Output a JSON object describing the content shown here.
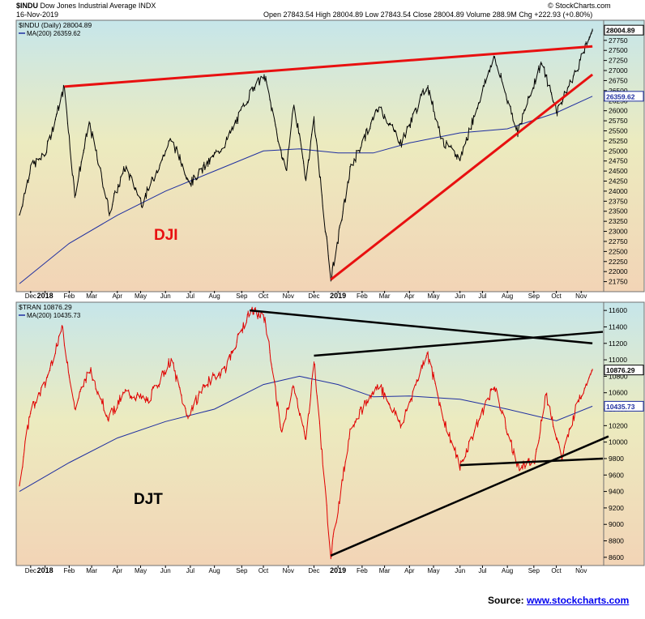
{
  "header": {
    "symbol": "$INDU",
    "name": "Dow Jones Industrial Average INDX",
    "date": "16-Nov-2019",
    "quote": "Open 27843.54  High 28004.89  Low 27843.54  Close 28004.89  Volume 288.9M  Chg +222.93 (+0.80%)",
    "brand": "© StockCharts.com"
  },
  "source": {
    "label": "Source:",
    "link": "www.stockcharts.com"
  },
  "colors": {
    "price_dji": "#000000",
    "price_djt": "#e00000",
    "ma": "#1f2fa0",
    "trend_dji": "#e81010",
    "trend_djt": "#000000",
    "bg_top": "#c6e6ea",
    "bg_mid": "#ecebbf",
    "bg_bottom": "#f2d4b6"
  },
  "chart_data": [
    {
      "type": "line",
      "panel": "upper",
      "legend_price": "$INDU (Daily) 28004.89",
      "legend_ma": "MA(200) 26359.62",
      "annotation": "DJI",
      "ylim": [
        21500,
        28250
      ],
      "y_ticks": [
        21750,
        22000,
        22250,
        22500,
        22750,
        23000,
        23250,
        23500,
        23750,
        24000,
        24250,
        24500,
        24750,
        25000,
        25250,
        25500,
        25750,
        26000,
        26250,
        26500,
        26750,
        27000,
        27250,
        27500,
        27750
      ],
      "last_price_label": "28004.89",
      "last_ma_label": "26359.62",
      "series": [
        {
          "key": "price",
          "x": [
            "2017-12-01",
            "2017-12-15",
            "2018-01-02",
            "2018-01-26",
            "2018-02-08",
            "2018-02-26",
            "2018-03-23",
            "2018-04-12",
            "2018-05-03",
            "2018-06-08",
            "2018-07-02",
            "2018-08-15",
            "2018-09-20",
            "2018-10-03",
            "2018-10-29",
            "2018-11-08",
            "2018-11-23",
            "2018-12-03",
            "2018-12-24",
            "2019-01-18",
            "2019-02-22",
            "2019-03-22",
            "2019-04-23",
            "2019-05-13",
            "2019-06-03",
            "2019-07-15",
            "2019-08-14",
            "2019-09-12",
            "2019-10-02",
            "2019-10-28",
            "2019-11-15"
          ],
          "y": [
            23400,
            24600,
            24900,
            26600,
            23900,
            25700,
            23500,
            24600,
            23700,
            25300,
            24200,
            25200,
            26650,
            26830,
            24440,
            26200,
            24300,
            25800,
            21790,
            24600,
            26100,
            25200,
            26650,
            25200,
            24800,
            27350,
            25480,
            27200,
            26000,
            27100,
            28004.89
          ]
        },
        {
          "key": "ma200",
          "x": [
            "2017-12-01",
            "2018-02-01",
            "2018-04-02",
            "2018-06-01",
            "2018-08-01",
            "2018-10-01",
            "2018-11-15",
            "2019-01-02",
            "2019-02-15",
            "2019-04-01",
            "2019-06-03",
            "2019-08-01",
            "2019-10-01",
            "2019-11-15"
          ],
          "y": [
            21700,
            22700,
            23400,
            24000,
            24500,
            25000,
            25050,
            24950,
            24950,
            25200,
            25450,
            25550,
            25950,
            26359.62
          ]
        }
      ],
      "trendlines": [
        {
          "name": "resistance",
          "x": [
            "2018-01-26",
            "2019-11-15"
          ],
          "y": [
            26600,
            27600
          ]
        },
        {
          "name": "support",
          "x": [
            "2018-12-24",
            "2019-11-15"
          ],
          "y": [
            21800,
            26900
          ]
        }
      ]
    },
    {
      "type": "line",
      "panel": "lower",
      "legend_price": "$TRAN 10876.29",
      "legend_ma": "MA(200) 10435.73",
      "annotation": "DJT",
      "ylim": [
        8500,
        11700
      ],
      "y_ticks": [
        8600,
        8800,
        9000,
        9200,
        9400,
        9600,
        9800,
        10000,
        10200,
        10400,
        10600,
        10800,
        11000,
        11200,
        11400,
        11600
      ],
      "last_price_label": "10876.29",
      "last_ma_label": "10435.73",
      "series": [
        {
          "key": "price",
          "x": [
            "2017-12-01",
            "2017-12-15",
            "2018-01-02",
            "2018-01-23",
            "2018-02-08",
            "2018-02-26",
            "2018-03-22",
            "2018-04-12",
            "2018-05-10",
            "2018-06-08",
            "2018-06-28",
            "2018-07-20",
            "2018-08-15",
            "2018-09-14",
            "2018-10-03",
            "2018-10-24",
            "2018-11-08",
            "2018-11-23",
            "2018-12-03",
            "2018-12-24",
            "2019-01-18",
            "2019-02-22",
            "2019-03-22",
            "2019-04-23",
            "2019-05-13",
            "2019-06-03",
            "2019-07-15",
            "2019-08-14",
            "2019-09-04",
            "2019-09-18",
            "2019-10-08",
            "2019-10-28",
            "2019-11-15"
          ],
          "y": [
            9500,
            10400,
            10700,
            11400,
            10400,
            10900,
            10300,
            10600,
            10500,
            11000,
            10300,
            10700,
            10900,
            11600,
            11500,
            10100,
            10700,
            10000,
            11000,
            8620,
            10200,
            10700,
            10200,
            11100,
            10300,
            9700,
            10700,
            9700,
            9750,
            10600,
            9800,
            10500,
            10876.29
          ]
        },
        {
          "key": "ma200",
          "x": [
            "2017-12-01",
            "2018-02-01",
            "2018-04-02",
            "2018-06-01",
            "2018-08-01",
            "2018-10-01",
            "2018-11-15",
            "2019-01-02",
            "2019-02-15",
            "2019-04-01",
            "2019-06-03",
            "2019-08-01",
            "2019-10-01",
            "2019-11-15"
          ],
          "y": [
            9400,
            9750,
            10050,
            10250,
            10400,
            10700,
            10800,
            10700,
            10550,
            10560,
            10520,
            10400,
            10260,
            10435.73
          ]
        }
      ],
      "trendlines": [
        {
          "name": "upper-falling",
          "x": [
            "2018-09-14",
            "2019-11-15"
          ],
          "y": [
            11600,
            11200
          ]
        },
        {
          "name": "upper-rising",
          "x": [
            "2018-12-03",
            "2019-11-28"
          ],
          "y": [
            11050,
            11340
          ]
        },
        {
          "name": "lower-flat",
          "x": [
            "2019-06-03",
            "2019-11-28"
          ],
          "y": [
            9720,
            9800
          ]
        },
        {
          "name": "lower-rising",
          "x": [
            "2018-12-24",
            "2019-12-05"
          ],
          "y": [
            8620,
            10070
          ]
        }
      ]
    }
  ],
  "x_axis": {
    "labels": [
      {
        "text": "Dec",
        "date": "2017-12-15",
        "bold": false
      },
      {
        "text": "2018",
        "date": "2018-01-02",
        "bold": true
      },
      {
        "text": "Feb",
        "date": "2018-02-01",
        "bold": false
      },
      {
        "text": "Mar",
        "date": "2018-03-01",
        "bold": false
      },
      {
        "text": "Apr",
        "date": "2018-04-02",
        "bold": false
      },
      {
        "text": "May",
        "date": "2018-05-01",
        "bold": false
      },
      {
        "text": "Jun",
        "date": "2018-06-01",
        "bold": false
      },
      {
        "text": "Jul",
        "date": "2018-07-02",
        "bold": false
      },
      {
        "text": "Aug",
        "date": "2018-08-01",
        "bold": false
      },
      {
        "text": "Sep",
        "date": "2018-09-04",
        "bold": false
      },
      {
        "text": "Oct",
        "date": "2018-10-01",
        "bold": false
      },
      {
        "text": "Nov",
        "date": "2018-11-01",
        "bold": false
      },
      {
        "text": "Dec",
        "date": "2018-12-03",
        "bold": false
      },
      {
        "text": "2019",
        "date": "2019-01-02",
        "bold": true
      },
      {
        "text": "Feb",
        "date": "2019-02-01",
        "bold": false
      },
      {
        "text": "Mar",
        "date": "2019-03-01",
        "bold": false
      },
      {
        "text": "Apr",
        "date": "2019-04-01",
        "bold": false
      },
      {
        "text": "May",
        "date": "2019-05-01",
        "bold": false
      },
      {
        "text": "Jun",
        "date": "2019-06-03",
        "bold": false
      },
      {
        "text": "Jul",
        "date": "2019-07-01",
        "bold": false
      },
      {
        "text": "Aug",
        "date": "2019-08-01",
        "bold": false
      },
      {
        "text": "Sep",
        "date": "2019-09-03",
        "bold": false
      },
      {
        "text": "Oct",
        "date": "2019-10-01",
        "bold": false
      },
      {
        "text": "Nov",
        "date": "2019-11-01",
        "bold": false
      }
    ],
    "range": [
      "2017-11-27",
      "2019-11-29"
    ]
  }
}
